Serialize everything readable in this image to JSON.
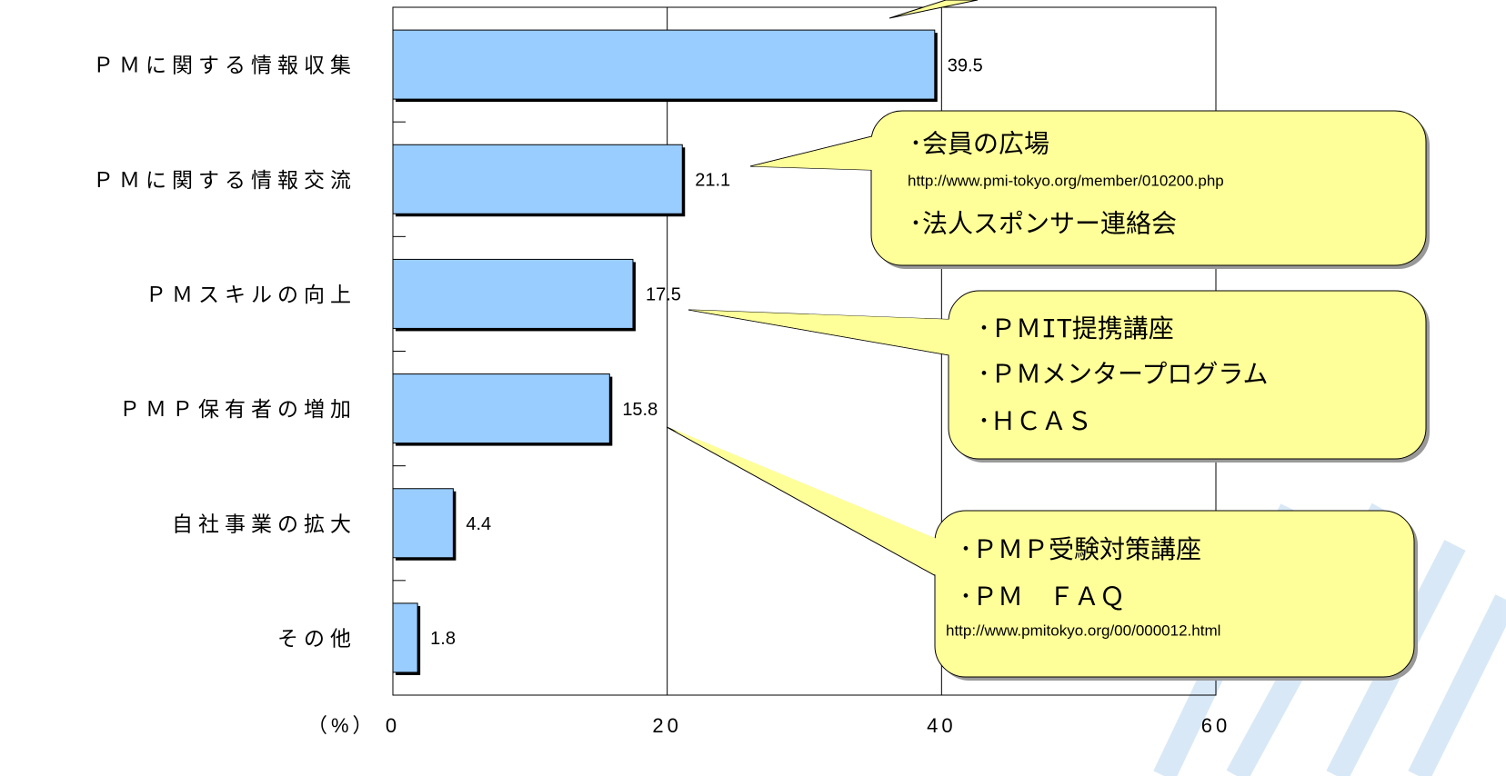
{
  "chart_data": {
    "type": "bar",
    "orientation": "horizontal",
    "categories": [
      "ＰＭに関する情報収集",
      "ＰＭに関する情報交流",
      "ＰＭスキルの向上",
      "ＰＭＰ保有者の増加",
      "自社事業の拡大",
      "その他"
    ],
    "values": [
      39.5,
      21.1,
      17.5,
      15.8,
      4.4,
      1.8
    ],
    "color": "#99ccff",
    "xlim": [
      0,
      60
    ],
    "xticks": [
      0,
      20,
      40,
      60
    ],
    "grid": true,
    "x_label": "（%）",
    "annotations": [
      {
        "lines": [
          "･会員の広場",
          "http://www.pmi-tokyo.org/member/010200.php",
          "･法人スポンサー連絡会"
        ]
      },
      {
        "lines": [
          "･ＰＭIT提携講座",
          "･ＰＭメンタープログラム",
          "･ＨＣＡＳ"
        ]
      },
      {
        "lines": [
          "･ＰＭＰ受験対策講座",
          "･ＰＭ　ＦＡＱ",
          "http://www.pmitokyo.org/00/000012.html"
        ]
      }
    ]
  }
}
